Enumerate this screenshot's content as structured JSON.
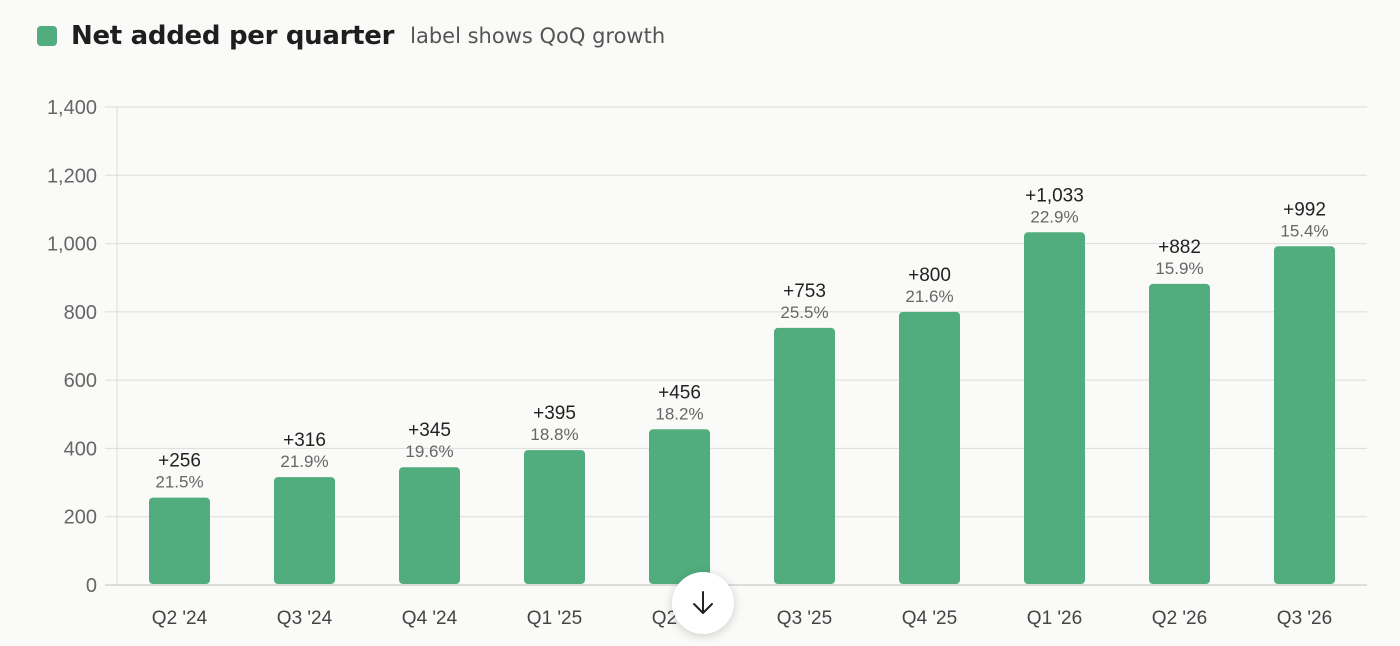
{
  "legend": {
    "title": "Net added per quarter",
    "subtitle": "label shows QoQ growth"
  },
  "colors": {
    "bar": "#52ad7e",
    "grid": "#dcdcdc",
    "axis_text": "#666666",
    "value_label": "#222222",
    "growth_label": "#666666"
  },
  "chart_data": {
    "type": "bar",
    "title": "Net added per quarter",
    "subtitle": "label shows QoQ growth",
    "categories": [
      "Q2 '24",
      "Q3 '24",
      "Q4 '24",
      "Q1 '25",
      "Q2 '25",
      "Q3 '25",
      "Q4 '25",
      "Q1 '26",
      "Q2 '26",
      "Q3 '26"
    ],
    "values": [
      256,
      316,
      345,
      395,
      456,
      753,
      800,
      1033,
      882,
      992
    ],
    "value_labels": [
      "+256",
      "+316",
      "+345",
      "+395",
      "+456",
      "+753",
      "+800",
      "+1,033",
      "+882",
      "+992"
    ],
    "growth_labels": [
      "21.5%",
      "21.9%",
      "19.6%",
      "18.8%",
      "18.2%",
      "25.5%",
      "21.6%",
      "22.9%",
      "15.9%",
      "15.4%"
    ],
    "ylim": [
      0,
      1400
    ],
    "yticks": [
      0,
      200,
      400,
      600,
      800,
      1000,
      1200,
      1400
    ],
    "ytick_labels": [
      "0",
      "200",
      "400",
      "600",
      "800",
      "1,000",
      "1,200",
      "1,400"
    ],
    "grid": true,
    "legend_position": "top-left",
    "xlabel": "",
    "ylabel": ""
  },
  "scroll_button": {
    "icon": "arrow-down-icon"
  }
}
